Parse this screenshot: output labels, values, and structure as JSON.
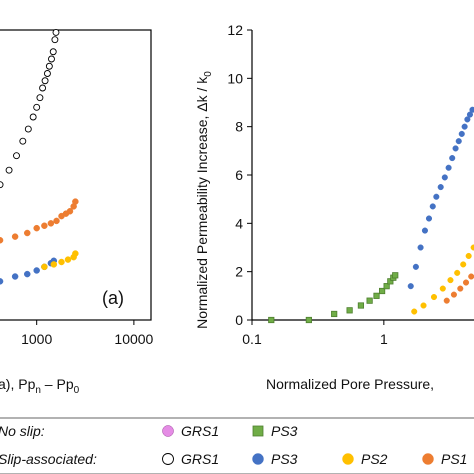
{
  "chart_data": [
    {
      "panel": "left",
      "type": "scatter",
      "panel_label": "(a)",
      "x_scale": "log",
      "xlim": [
        400,
        15000
      ],
      "ylim": [
        0,
        12
      ],
      "x_ticks": [
        1000,
        10000
      ],
      "x_tick_labels": [
        "1000",
        "10000"
      ],
      "xlabel_parts": [
        "a), Pp",
        "n",
        " – Pp",
        "0"
      ],
      "series": [
        {
          "name": "GRS1",
          "group": "Slip-associated",
          "marker": "circle-open",
          "color": "#000000",
          "x": [
            420,
            520,
            620,
            720,
            820,
            920,
            1000,
            1080,
            1150,
            1220,
            1290,
            1350,
            1420,
            1480,
            1540,
            1580
          ],
          "y": [
            5.6,
            6.2,
            6.8,
            7.4,
            7.9,
            8.4,
            8.8,
            9.2,
            9.6,
            9.9,
            10.2,
            10.5,
            10.8,
            11.1,
            11.6,
            11.9
          ]
        },
        {
          "name": "PS1",
          "group": "Slip-associated",
          "marker": "circle-filled",
          "color": "#ED7D31",
          "x": [
            420,
            600,
            800,
            1000,
            1200,
            1400,
            1600,
            1800,
            2000,
            2200,
            2400,
            2500
          ],
          "y": [
            3.3,
            3.45,
            3.6,
            3.8,
            3.9,
            4.0,
            4.1,
            4.3,
            4.4,
            4.5,
            4.7,
            4.9
          ]
        },
        {
          "name": "PS3",
          "group": "Slip-associated",
          "marker": "circle-filled",
          "color": "#4472C4",
          "x": [
            420,
            600,
            800,
            1000,
            1200,
            1400,
            1500
          ],
          "y": [
            1.6,
            1.8,
            1.9,
            2.05,
            2.2,
            2.35,
            2.45
          ]
        },
        {
          "name": "PS2",
          "group": "Slip-associated",
          "marker": "circle-filled",
          "color": "#FFC000",
          "x": [
            1200,
            1500,
            1800,
            2100,
            2400,
            2500
          ],
          "y": [
            2.2,
            2.3,
            2.4,
            2.5,
            2.6,
            2.75
          ]
        }
      ]
    },
    {
      "panel": "right",
      "type": "scatter",
      "x_scale": "log",
      "xlim": [
        0.1,
        5
      ],
      "ylim": [
        0,
        12
      ],
      "y_ticks": [
        0,
        2,
        4,
        6,
        8,
        10,
        12
      ],
      "x_ticks": [
        0.1,
        1
      ],
      "x_tick_labels": [
        "0.1",
        "1"
      ],
      "xlabel": "Normalized Pore Pressure,",
      "ylabel": "Normalized Permeability Increase,  Δk / k",
      "ylabel_sub": "0",
      "series": [
        {
          "name": "PS3",
          "group": "No slip",
          "marker": "square",
          "color": "#70AD47",
          "x": [
            0.14,
            0.27,
            0.42,
            0.55,
            0.67,
            0.78,
            0.88,
            0.97,
            1.05,
            1.12,
            1.18,
            1.22
          ],
          "y": [
            0.0,
            0.0,
            0.25,
            0.4,
            0.6,
            0.8,
            1.0,
            1.2,
            1.4,
            1.6,
            1.75,
            1.85
          ]
        },
        {
          "name": "PS3",
          "group": "Slip-associated",
          "marker": "circle-filled",
          "color": "#4472C4",
          "x": [
            1.6,
            1.75,
            1.9,
            2.05,
            2.2,
            2.35,
            2.5,
            2.7,
            2.9,
            3.1,
            3.3,
            3.5,
            3.7,
            3.9,
            4.1,
            4.3,
            4.5,
            4.7
          ],
          "y": [
            1.4,
            2.2,
            3.0,
            3.7,
            4.2,
            4.7,
            5.1,
            5.5,
            5.9,
            6.3,
            6.7,
            7.1,
            7.4,
            7.7,
            8.0,
            8.3,
            8.5,
            8.7
          ]
        },
        {
          "name": "PS2",
          "group": "Slip-associated",
          "marker": "circle-filled",
          "color": "#FFC000",
          "x": [
            1.7,
            2.0,
            2.4,
            2.8,
            3.2,
            3.6,
            4.0,
            4.4,
            4.8
          ],
          "y": [
            0.35,
            0.6,
            0.95,
            1.3,
            1.65,
            1.95,
            2.3,
            2.65,
            3.0
          ]
        },
        {
          "name": "PS1",
          "group": "Slip-associated",
          "marker": "circle-filled",
          "color": "#ED7D31",
          "x": [
            3.0,
            3.4,
            3.8,
            4.2,
            4.6
          ],
          "y": [
            0.8,
            1.05,
            1.3,
            1.55,
            1.8
          ]
        }
      ]
    }
  ],
  "legend": {
    "rows": [
      {
        "label": "No slip:",
        "entries": [
          {
            "label": "GRS1",
            "marker": "circle-filled",
            "color": "#E58CE5",
            "stroke": "#9B3F9B"
          },
          {
            "label": "PS3",
            "marker": "square",
            "color": "#70AD47",
            "stroke": "#4E7F2F"
          }
        ]
      },
      {
        "label": "Slip-associated:",
        "entries": [
          {
            "label": "GRS1",
            "marker": "circle-open",
            "color": "#FFFFFF",
            "stroke": "#000000"
          },
          {
            "label": "PS3",
            "marker": "circle-filled",
            "color": "#4472C4",
            "stroke": "#4472C4"
          },
          {
            "label": "PS2",
            "marker": "circle-filled",
            "color": "#FFC000",
            "stroke": "#FFC000"
          },
          {
            "label": "PS1",
            "marker": "circle-filled",
            "color": "#ED7D31",
            "stroke": "#ED7D31"
          }
        ]
      }
    ]
  }
}
